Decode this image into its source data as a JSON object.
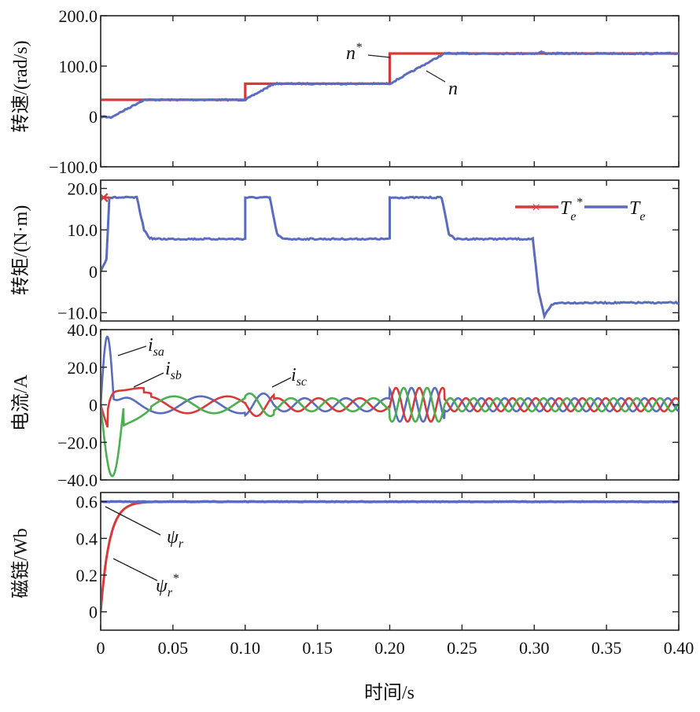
{
  "chart_data": {
    "type": "line",
    "x_axis": {
      "label": "时间/s",
      "range": [
        0,
        0.4
      ],
      "ticks": [
        0,
        0.05,
        0.1,
        0.15,
        0.2,
        0.25,
        0.3,
        0.35,
        0.4
      ],
      "tick_labels": [
        "0",
        "0.05",
        "0.10",
        "0.15",
        "0.20",
        "0.25",
        "0.30",
        "0.35",
        "0.40"
      ]
    },
    "panels": [
      {
        "id": "speed",
        "ylabel": "转速/(rad/s)",
        "ylim": [
          -100,
          200
        ],
        "yticks": [
          -100,
          0,
          100,
          200
        ],
        "ytick_labels": [
          "−100.0",
          "0",
          "100.0",
          "200.0"
        ],
        "series": [
          {
            "name": "n*",
            "color": "#d83a3a",
            "points": [
              [
                0,
                33
              ],
              [
                0.1,
                33
              ],
              [
                0.1,
                65
              ],
              [
                0.2,
                65
              ],
              [
                0.2,
                125
              ],
              [
                0.4,
                125
              ]
            ]
          },
          {
            "name": "n",
            "color": "#5a6cc0",
            "points": [
              [
                0,
                0
              ],
              [
                0.007,
                -2
              ],
              [
                0.03,
                33
              ],
              [
                0.1,
                33
              ],
              [
                0.12,
                65
              ],
              [
                0.2,
                65
              ],
              [
                0.238,
                125
              ],
              [
                0.302,
                125
              ],
              [
                0.305,
                128
              ],
              [
                0.308,
                125
              ],
              [
                0.4,
                125
              ]
            ]
          }
        ],
        "annotations": [
          {
            "text": "n*",
            "at": [
              0.2,
              125
            ]
          },
          {
            "text": "n",
            "at": [
              0.222,
              105
            ]
          }
        ]
      },
      {
        "id": "torque",
        "ylabel": "转矩/(N·m)",
        "ylim": [
          -12,
          22
        ],
        "yticks": [
          -10,
          0,
          10,
          20
        ],
        "ytick_labels": [
          "−10.0",
          "0",
          "10.0",
          "20.0"
        ],
        "legend": {
          "position": "top-right",
          "entries": [
            "Te*",
            "Te"
          ]
        },
        "series": [
          {
            "name": "Te*",
            "color": "#d83a3a",
            "marker_at": [
              0.002,
              17.8
            ],
            "points": [
              [
                0,
                17.8
              ],
              [
                0.006,
                17.8
              ]
            ]
          },
          {
            "name": "Te",
            "color": "#5a6cc0",
            "points": [
              [
                0,
                0
              ],
              [
                0.004,
                3
              ],
              [
                0.006,
                17.8
              ],
              [
                0.025,
                17.8
              ],
              [
                0.03,
                10
              ],
              [
                0.034,
                8
              ],
              [
                0.038,
                7.8
              ],
              [
                0.1,
                7.8
              ],
              [
                0.1,
                17.8
              ],
              [
                0.117,
                17.8
              ],
              [
                0.122,
                9
              ],
              [
                0.126,
                7.8
              ],
              [
                0.2,
                7.8
              ],
              [
                0.2,
                17.8
              ],
              [
                0.236,
                17.8
              ],
              [
                0.241,
                9
              ],
              [
                0.245,
                7.8
              ],
              [
                0.299,
                7.8
              ],
              [
                0.303,
                -5
              ],
              [
                0.307,
                -10.8
              ],
              [
                0.312,
                -8
              ],
              [
                0.318,
                -7.6
              ],
              [
                0.4,
                -7.6
              ]
            ]
          }
        ]
      },
      {
        "id": "current",
        "ylabel": "电流/A",
        "ylim": [
          -40,
          40
        ],
        "yticks": [
          -40,
          -20,
          0,
          20,
          40
        ],
        "ytick_labels": [
          "−40.0",
          "−20.0",
          "0",
          "20.0",
          "40.0"
        ],
        "series": [
          {
            "name": "isa",
            "color": "#5a6cc0"
          },
          {
            "name": "isb",
            "color": "#d83a3a"
          },
          {
            "name": "isc",
            "color": "#4caf50"
          }
        ],
        "annotations": [
          {
            "text": "isa",
            "at": [
              0.008,
              33
            ]
          },
          {
            "text": "isb",
            "at": [
              0.022,
              11
            ]
          },
          {
            "text": "isc",
            "at": [
              0.118,
              9
            ]
          }
        ]
      },
      {
        "id": "flux",
        "ylabel": "磁链/Wb",
        "ylim": [
          -0.1,
          0.65
        ],
        "yticks": [
          0,
          0.2,
          0.4,
          0.6
        ],
        "ytick_labels": [
          "0",
          "0.2",
          "0.4",
          "0.6"
        ],
        "series": [
          {
            "name": "ψr",
            "color": "#5a6cc0",
            "points": [
              [
                0,
                0.6
              ],
              [
                0.4,
                0.6
              ]
            ]
          },
          {
            "name": "ψr*",
            "color": "#d83a3a"
          }
        ],
        "annotations": [
          {
            "text": "ψr",
            "at": [
              0.003,
              0.6
            ]
          },
          {
            "text": "ψr*",
            "at": [
              0.006,
              0.32
            ]
          }
        ]
      }
    ]
  }
}
